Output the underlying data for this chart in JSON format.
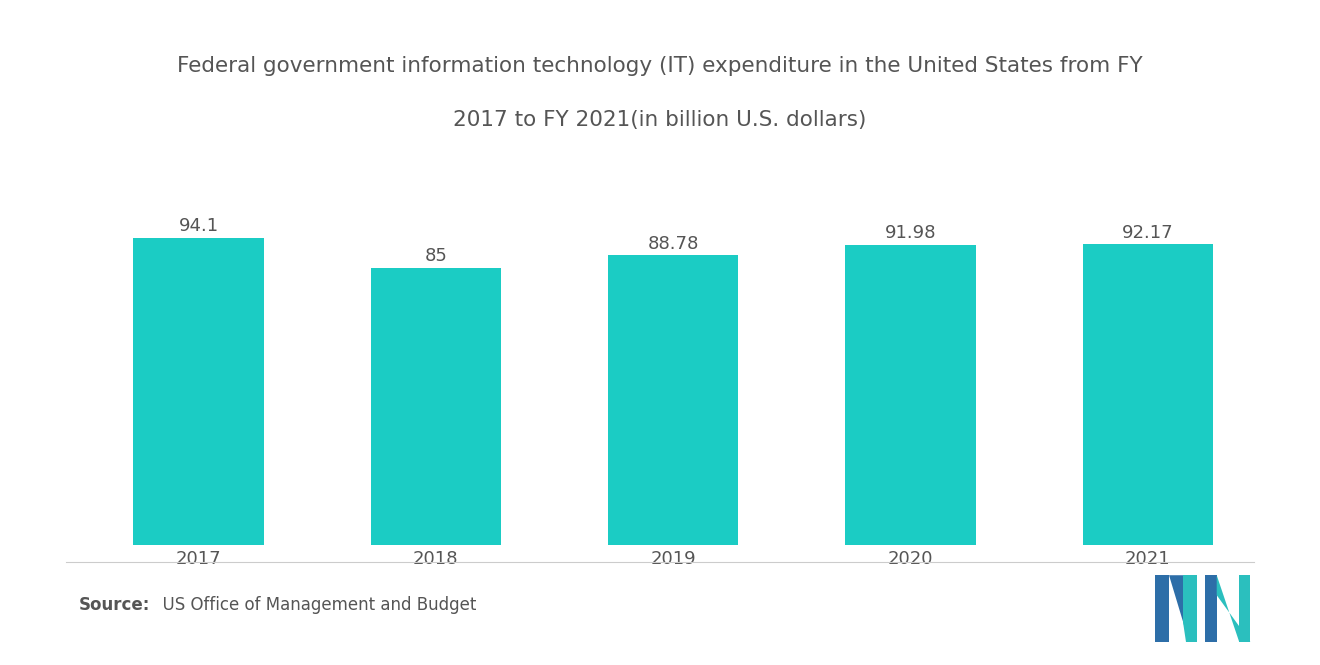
{
  "title_line1": "Federal government information technology (IT) expenditure in the United States from FY",
  "title_line2": "2017 to FY 2021(in billion U.S. dollars)",
  "categories": [
    "2017",
    "2018",
    "2019",
    "2020",
    "2021"
  ],
  "values": [
    94.1,
    85.0,
    88.78,
    91.98,
    92.17
  ],
  "bar_color": "#1BCCC4",
  "value_labels": [
    "94.1",
    "85",
    "88.78",
    "91.98",
    "92.17"
  ],
  "source_bold": "Source:",
  "source_text": "  US Office of Management and Budget",
  "title_fontsize": 15.5,
  "label_fontsize": 13,
  "tick_fontsize": 13,
  "source_fontsize": 12,
  "ylim": [
    0,
    110
  ],
  "background_color": "#ffffff",
  "text_color": "#555555",
  "bar_width": 0.55,
  "logo_blue": "#2D6EA8",
  "logo_teal": "#2BBFBE"
}
